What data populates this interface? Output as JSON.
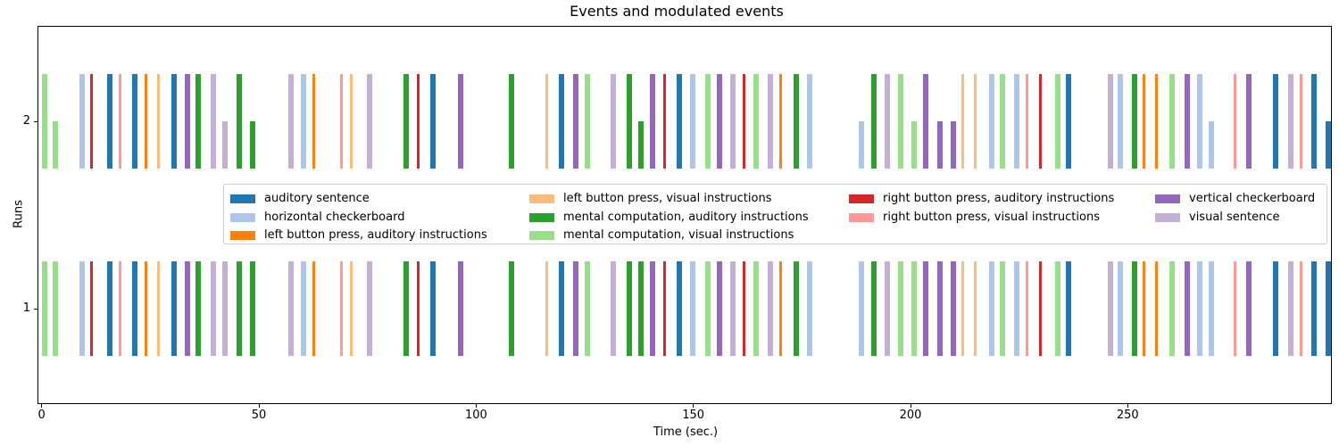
{
  "title": "Events and modulated events",
  "axes": {
    "xlabel": "Time (sec.)",
    "ylabel": "Runs",
    "x_ticks": [
      0,
      50,
      100,
      150,
      200,
      250
    ],
    "x_range_sec": [
      0,
      297
    ],
    "runs": [
      "1",
      "2"
    ],
    "grid": false
  },
  "legend": {
    "position": "upper center, inside plot",
    "columns": [
      3,
      3,
      2,
      2
    ]
  },
  "chart_data": {
    "type": "bar",
    "description": "Event plot: one bar per event occurrence per run; bar color = condition; bar height = amplitude modulation (run 1 all 1.0, run 2 modulated).",
    "conditions": [
      {
        "id": "aud",
        "label": "auditory sentence",
        "color": "#1f77b4",
        "duration_sec": 1.2
      },
      {
        "id": "hcb",
        "label": "horizontal checkerboard",
        "color": "#aec7e8",
        "duration_sec": 1.2
      },
      {
        "id": "lba",
        "label": "left button press, auditory instructions",
        "color": "#ff7f0e",
        "duration_sec": 0.7
      },
      {
        "id": "lbv",
        "label": "left button press, visual instructions",
        "color": "#ffbb78",
        "duration_sec": 0.7
      },
      {
        "id": "mca",
        "label": "mental computation, auditory instructions",
        "color": "#2ca02c",
        "duration_sec": 1.2
      },
      {
        "id": "mcv",
        "label": "mental computation, visual instructions",
        "color": "#98df8a",
        "duration_sec": 1.2
      },
      {
        "id": "rba",
        "label": "right button press, auditory instructions",
        "color": "#d62728",
        "duration_sec": 0.7
      },
      {
        "id": "rbv",
        "label": "right button press, visual instructions",
        "color": "#ff9896",
        "duration_sec": 0.7
      },
      {
        "id": "vcb",
        "label": "vertical checkerboard",
        "color": "#9467bd",
        "duration_sec": 1.2
      },
      {
        "id": "vis",
        "label": "visual sentence",
        "color": "#c5b0d5",
        "duration_sec": 1.2
      }
    ],
    "runs": [
      "1",
      "2"
    ],
    "events": [
      {
        "t": 0.0,
        "c": "mcv",
        "m2": 1
      },
      {
        "t": 2.5,
        "c": "mcv",
        "m2": 0.5
      },
      {
        "t": 8.7,
        "c": "hcb",
        "m2": 1
      },
      {
        "t": 11.1,
        "c": "rba",
        "m2": 1
      },
      {
        "t": 15.0,
        "c": "aud",
        "m2": 1
      },
      {
        "t": 17.8,
        "c": "rbv",
        "m2": 1
      },
      {
        "t": 20.9,
        "c": "aud",
        "m2": 1
      },
      {
        "t": 23.6,
        "c": "lba",
        "m2": 1
      },
      {
        "t": 26.5,
        "c": "lbv",
        "m2": 1
      },
      {
        "t": 29.9,
        "c": "aud",
        "m2": 1
      },
      {
        "t": 33.0,
        "c": "vcb",
        "m2": 1
      },
      {
        "t": 35.4,
        "c": "mca",
        "m2": 1
      },
      {
        "t": 38.8,
        "c": "vis",
        "m2": 1
      },
      {
        "t": 41.6,
        "c": "vis",
        "m2": 0.5
      },
      {
        "t": 44.8,
        "c": "mca",
        "m2": 1
      },
      {
        "t": 48.0,
        "c": "mca",
        "m2": 0.5
      },
      {
        "t": 56.7,
        "c": "vis",
        "m2": 1
      },
      {
        "t": 59.6,
        "c": "hcb",
        "m2": 1
      },
      {
        "t": 62.3,
        "c": "lba",
        "m2": 1
      },
      {
        "t": 68.7,
        "c": "rbv",
        "m2": 1
      },
      {
        "t": 70.9,
        "c": "lbv",
        "m2": 1
      },
      {
        "t": 74.8,
        "c": "vis",
        "m2": 1
      },
      {
        "t": 83.2,
        "c": "mca",
        "m2": 1
      },
      {
        "t": 86.3,
        "c": "rba",
        "m2": 1
      },
      {
        "t": 89.4,
        "c": "aud",
        "m2": 1
      },
      {
        "t": 95.8,
        "c": "vcb",
        "m2": 1
      },
      {
        "t": 107.5,
        "c": "mca",
        "m2": 1
      },
      {
        "t": 115.9,
        "c": "lbv",
        "m2": 1
      },
      {
        "t": 119.0,
        "c": "aud",
        "m2": 1
      },
      {
        "t": 122.3,
        "c": "vcb",
        "m2": 1
      },
      {
        "t": 125.0,
        "c": "mcv",
        "m2": 1
      },
      {
        "t": 131.0,
        "c": "vis",
        "m2": 1
      },
      {
        "t": 134.6,
        "c": "mca",
        "m2": 1
      },
      {
        "t": 137.3,
        "c": "mca",
        "m2": 0.5
      },
      {
        "t": 140.0,
        "c": "vcb",
        "m2": 1
      },
      {
        "t": 143.0,
        "c": "rba",
        "m2": 1
      },
      {
        "t": 146.2,
        "c": "aud",
        "m2": 1
      },
      {
        "t": 149.3,
        "c": "hcb",
        "m2": 1
      },
      {
        "t": 152.7,
        "c": "mcv",
        "m2": 1
      },
      {
        "t": 155.4,
        "c": "vcb",
        "m2": 1
      },
      {
        "t": 158.5,
        "c": "vis",
        "m2": 1
      },
      {
        "t": 161.4,
        "c": "rba",
        "m2": 1
      },
      {
        "t": 163.9,
        "c": "mcv",
        "m2": 1
      },
      {
        "t": 167.1,
        "c": "vis",
        "m2": 1
      },
      {
        "t": 169.8,
        "c": "lba",
        "m2": 1
      },
      {
        "t": 173.1,
        "c": "mca",
        "m2": 1
      },
      {
        "t": 176.2,
        "c": "hcb",
        "m2": 1
      },
      {
        "t": 188.0,
        "c": "hcb",
        "m2": 0.5
      },
      {
        "t": 191.0,
        "c": "mca",
        "m2": 1
      },
      {
        "t": 194.1,
        "c": "vis",
        "m2": 1
      },
      {
        "t": 197.1,
        "c": "mcv",
        "m2": 1
      },
      {
        "t": 200.2,
        "c": "mcv",
        "m2": 0.5
      },
      {
        "t": 202.9,
        "c": "vcb",
        "m2": 1
      },
      {
        "t": 206.2,
        "c": "vcb",
        "m2": 0.5
      },
      {
        "t": 209.3,
        "c": "vcb",
        "m2": 0.5
      },
      {
        "t": 211.8,
        "c": "lbv",
        "m2": 1
      },
      {
        "t": 214.6,
        "c": "lbv",
        "m2": 1
      },
      {
        "t": 218.1,
        "c": "hcb",
        "m2": 1
      },
      {
        "t": 220.6,
        "c": "mcv",
        "m2": 1
      },
      {
        "t": 223.9,
        "c": "hcb",
        "m2": 1
      },
      {
        "t": 226.5,
        "c": "rbv",
        "m2": 1
      },
      {
        "t": 229.6,
        "c": "rba",
        "m2": 1
      },
      {
        "t": 233.3,
        "c": "mcv",
        "m2": 1
      },
      {
        "t": 235.8,
        "c": "aud",
        "m2": 1
      },
      {
        "t": 245.4,
        "c": "vis",
        "m2": 1
      },
      {
        "t": 247.7,
        "c": "hcb",
        "m2": 1
      },
      {
        "t": 251.0,
        "c": "mca",
        "m2": 1
      },
      {
        "t": 253.4,
        "c": "lba",
        "m2": 1
      },
      {
        "t": 256.3,
        "c": "lba",
        "m2": 1
      },
      {
        "t": 259.6,
        "c": "mcv",
        "m2": 1
      },
      {
        "t": 263.1,
        "c": "vcb",
        "m2": 1
      },
      {
        "t": 266.0,
        "c": "hcb",
        "m2": 1
      },
      {
        "t": 268.6,
        "c": "hcb",
        "m2": 0.5
      },
      {
        "t": 274.4,
        "c": "rbv",
        "m2": 1
      },
      {
        "t": 277.3,
        "c": "vcb",
        "m2": 1
      },
      {
        "t": 283.4,
        "c": "aud",
        "m2": 1
      },
      {
        "t": 286.9,
        "c": "vis",
        "m2": 1
      },
      {
        "t": 289.6,
        "c": "rbv",
        "m2": 1
      },
      {
        "t": 292.3,
        "c": "aud",
        "m2": 1
      },
      {
        "t": 295.6,
        "c": "aud",
        "m2": 0.5
      }
    ]
  }
}
